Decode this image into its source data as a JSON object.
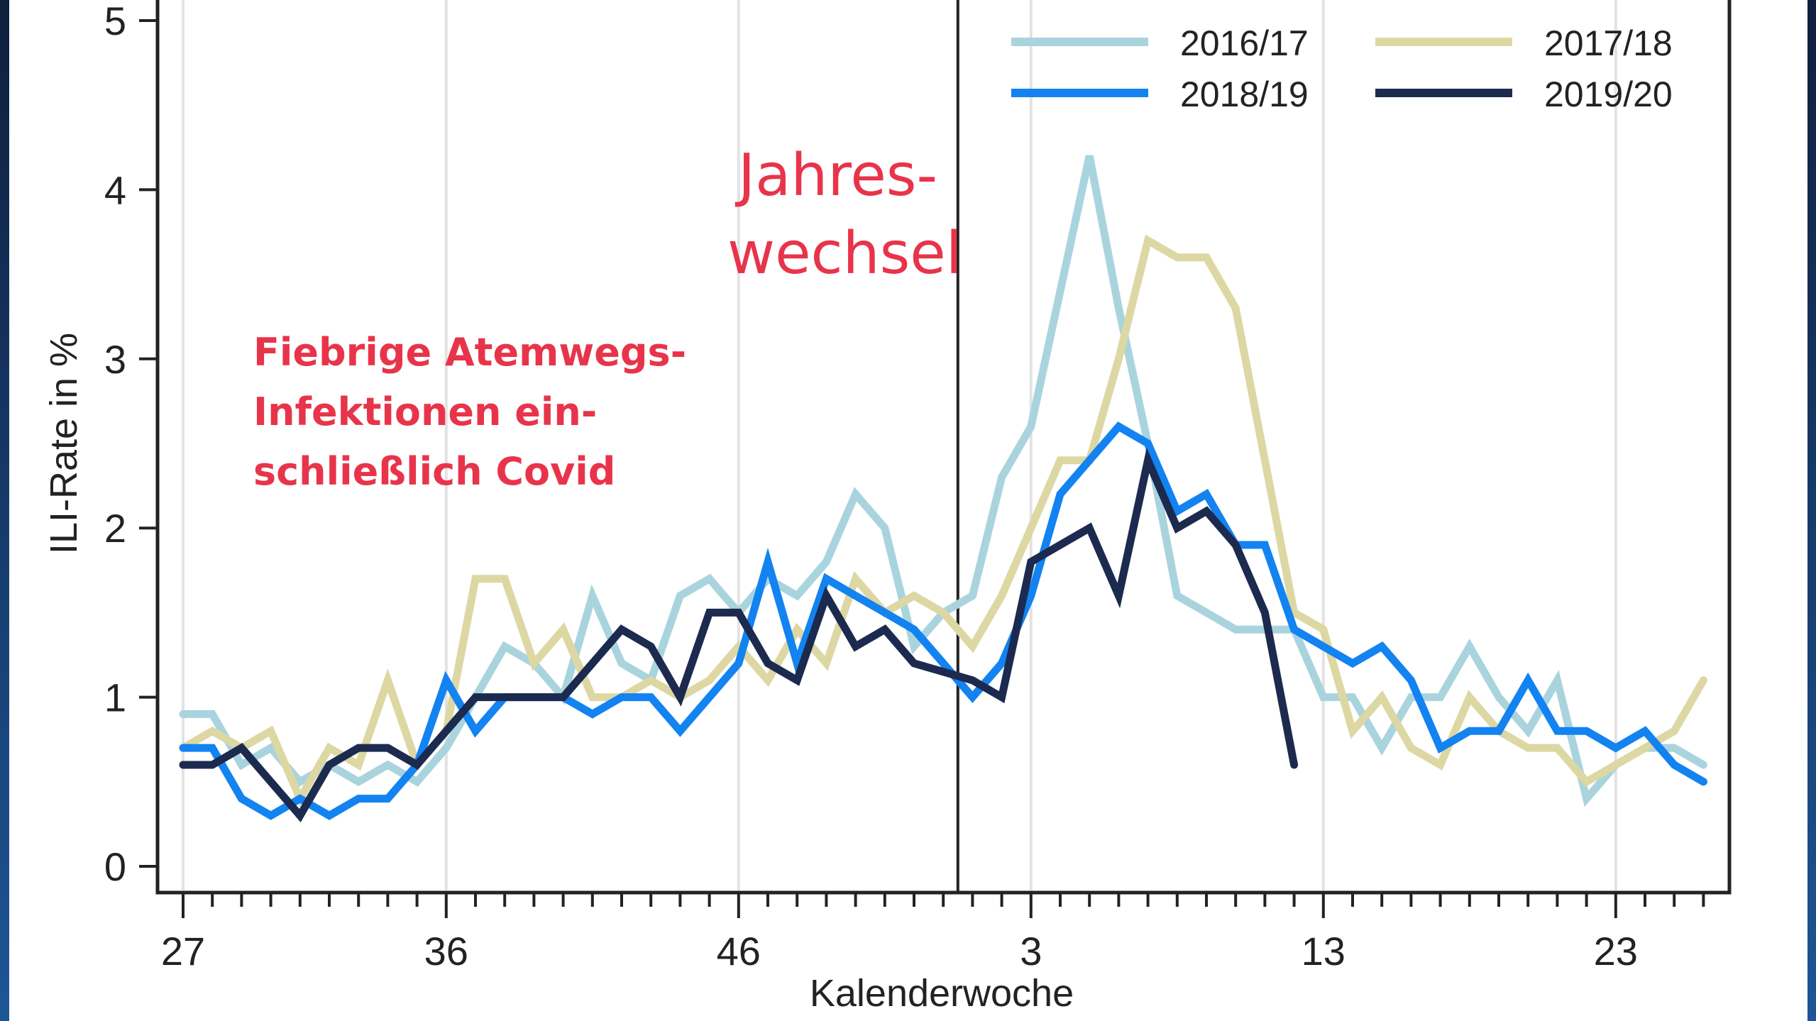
{
  "chart_data": {
    "type": "line",
    "title": "",
    "xlabel": "Kalenderwoche",
    "ylabel": "ILI-Rate in %",
    "ylim": [
      0,
      5
    ],
    "yticks": [
      "0",
      "1",
      "2",
      "3",
      "4",
      "5"
    ],
    "xticks": [
      {
        "label": "27",
        "index": 0
      },
      {
        "label": "36",
        "index": 9
      },
      {
        "label": "46",
        "index": 19
      },
      {
        "label": "3",
        "index": 29
      },
      {
        "label": "13",
        "index": 39
      },
      {
        "label": "23",
        "index": 49
      }
    ],
    "grid": "vertical lines at labeled x ticks",
    "x": [
      "27",
      "28",
      "29",
      "30",
      "31",
      "32",
      "33",
      "34",
      "35",
      "36",
      "37",
      "38",
      "39",
      "40",
      "41",
      "42",
      "43",
      "44",
      "45",
      "46",
      "47",
      "48",
      "49",
      "50",
      "51",
      "52",
      "53",
      "1",
      "2",
      "3",
      "4",
      "5",
      "6",
      "7",
      "8",
      "9",
      "10",
      "11",
      "12",
      "13",
      "14",
      "15",
      "16",
      "17",
      "18",
      "19",
      "20",
      "21",
      "22",
      "23",
      "24",
      "25",
      "26"
    ],
    "year_change_index": 26.5,
    "series": [
      {
        "name": "2016/17",
        "color": "#a9d4de",
        "values": [
          0.9,
          0.9,
          0.6,
          0.7,
          0.5,
          0.6,
          0.5,
          0.6,
          0.5,
          0.7,
          1.0,
          1.3,
          1.2,
          1.0,
          1.6,
          1.2,
          1.1,
          1.6,
          1.7,
          1.5,
          1.7,
          1.6,
          1.8,
          2.2,
          2.0,
          1.3,
          1.5,
          1.6,
          2.3,
          2.6,
          3.4,
          4.2,
          3.3,
          2.5,
          1.6,
          1.5,
          1.4,
          1.4,
          1.4,
          1.0,
          1.0,
          0.7,
          1.0,
          1.0,
          1.3,
          1.0,
          0.8,
          1.1,
          0.4,
          0.6,
          0.7,
          0.7,
          0.6
        ]
      },
      {
        "name": "2017/18",
        "color": "#ddd7a3",
        "values": [
          0.7,
          0.8,
          0.7,
          0.8,
          0.4,
          0.7,
          0.6,
          1.1,
          0.6,
          0.8,
          1.7,
          1.7,
          1.2,
          1.4,
          1.0,
          1.0,
          1.1,
          1.0,
          1.1,
          1.3,
          1.1,
          1.4,
          1.2,
          1.7,
          1.5,
          1.6,
          1.5,
          1.3,
          1.6,
          2.0,
          2.4,
          2.4,
          3.0,
          3.7,
          3.6,
          3.6,
          3.3,
          2.4,
          1.5,
          1.4,
          0.8,
          1.0,
          0.7,
          0.6,
          1.0,
          0.8,
          0.7,
          0.7,
          0.5,
          0.6,
          0.7,
          0.8,
          1.1
        ]
      },
      {
        "name": "2018/19",
        "color": "#1283f0",
        "values": [
          0.7,
          0.7,
          0.4,
          0.3,
          0.4,
          0.3,
          0.4,
          0.4,
          0.6,
          1.1,
          0.8,
          1.0,
          1.0,
          1.0,
          0.9,
          1.0,
          1.0,
          0.8,
          1.0,
          1.2,
          1.8,
          1.2,
          1.7,
          1.6,
          1.5,
          1.4,
          1.2,
          1.0,
          1.2,
          1.6,
          2.2,
          2.4,
          2.6,
          2.5,
          2.1,
          2.2,
          1.9,
          1.9,
          1.4,
          1.3,
          1.2,
          1.3,
          1.1,
          0.7,
          0.8,
          0.8,
          1.1,
          0.8,
          0.8,
          0.7,
          0.8,
          0.6,
          0.5
        ]
      },
      {
        "name": "2019/20",
        "color": "#1c2a4f",
        "values": [
          0.6,
          0.6,
          0.7,
          0.5,
          0.3,
          0.6,
          0.7,
          0.7,
          0.6,
          0.8,
          1.0,
          1.0,
          1.0,
          1.0,
          1.2,
          1.4,
          1.3,
          1.0,
          1.5,
          1.5,
          1.2,
          1.1,
          1.6,
          1.3,
          1.4,
          1.2,
          1.15,
          1.1,
          1.0,
          1.8,
          1.9,
          2.0,
          1.6,
          2.4,
          2.0,
          2.1,
          1.9,
          1.5,
          0.6
        ]
      }
    ],
    "legend": {
      "position": "top-right",
      "columns": 2,
      "entries": [
        "2016/17",
        "2017/18",
        "2018/19",
        "2019/20"
      ]
    },
    "annotations": [
      {
        "text_lines": [
          "Fiebrige Atemwegs-",
          "Infektionen ein-",
          "schließlich Covid"
        ],
        "color": "#e8344a"
      },
      {
        "text_lines": [
          "Jahres-",
          "wechsel"
        ],
        "color": "#e8344a"
      }
    ]
  },
  "axis": {
    "ylabel": "ILI-Rate in %",
    "xlabel": "Kalenderwoche"
  },
  "legend": {
    "items": [
      {
        "label": "2016/17",
        "color": "#a9d4de"
      },
      {
        "label": "2017/18",
        "color": "#ddd7a3"
      },
      {
        "label": "2018/19",
        "color": "#1283f0"
      },
      {
        "label": "2019/20",
        "color": "#1c2a4f"
      }
    ]
  },
  "annotation_main": {
    "line1": "Fiebrige Atemwegs-",
    "line2": "Infektionen ein-",
    "line3": "schließlich Covid"
  },
  "annotation_year": {
    "line1": "Jahres-",
    "line2": "wechsel"
  }
}
